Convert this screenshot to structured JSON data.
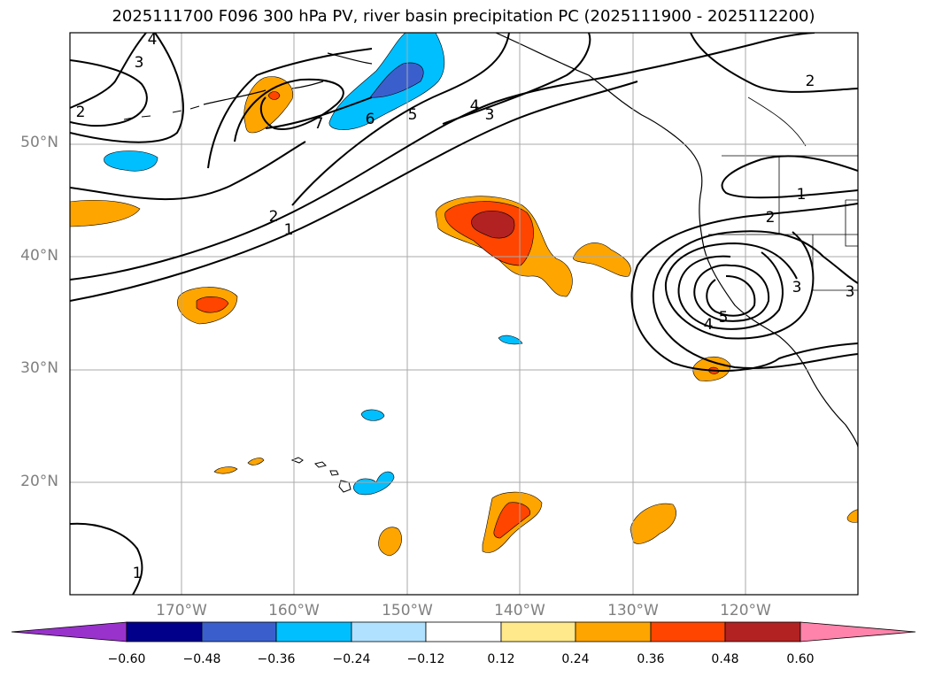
{
  "title": "2025111700 F096 300 hPa PV, river basin precipitation PC (2025111900 - 2025112200)",
  "lat_labels": [
    "50°N",
    "40°N",
    "30°N",
    "20°N"
  ],
  "lon_labels": [
    "170°W",
    "160°W",
    "150°W",
    "140°W",
    "130°W",
    "120°W"
  ],
  "colorbar": {
    "ticks": [
      "−0.60",
      "−0.48",
      "−0.36",
      "−0.24",
      "−0.12",
      "0.12",
      "0.24",
      "0.36",
      "0.48",
      "0.60"
    ],
    "colors": [
      "#9932cc",
      "#00008b",
      "#3a5fcd",
      "#00bfff",
      "#b0e2ff",
      "#ffffff",
      "#ffe98a",
      "#ffa500",
      "#ff4500",
      "#b22222",
      "#ff83ab"
    ]
  },
  "contour_labels": [
    "3",
    "4",
    "2",
    "7",
    "6",
    "5",
    "4",
    "3",
    "2",
    "1",
    "2",
    "1",
    "2",
    "3",
    "3",
    "4",
    "5",
    "1"
  ]
}
